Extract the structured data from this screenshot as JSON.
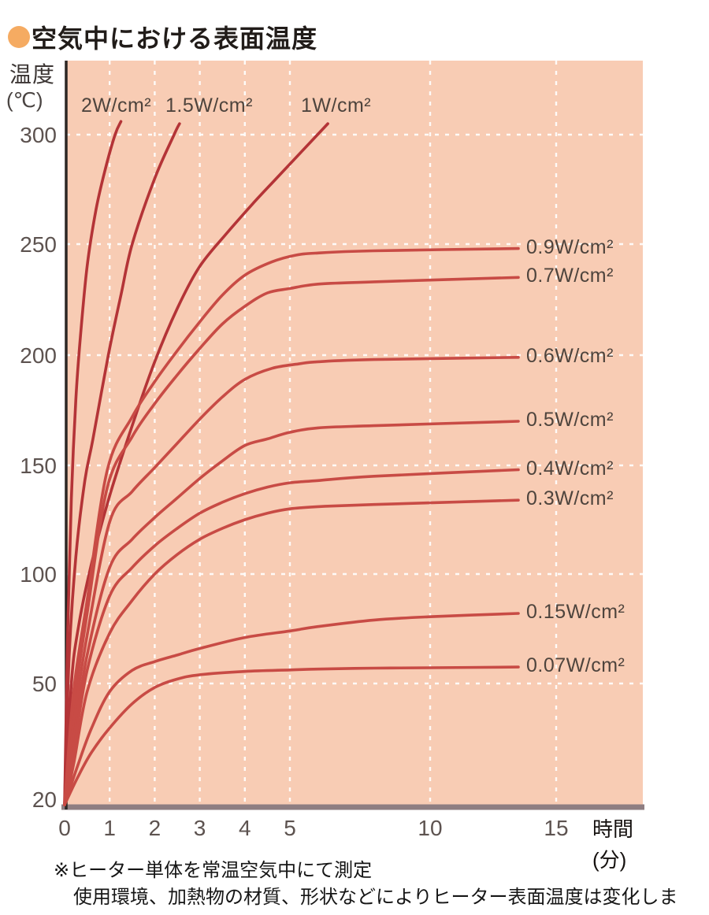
{
  "title": {
    "text": "空気中における表面温度"
  },
  "y_axis": {
    "title": "温度",
    "unit": "(℃)",
    "ticks": [
      300,
      250,
      200,
      150,
      100,
      50,
      20
    ]
  },
  "x_axis": {
    "ticks": [
      0,
      1,
      2,
      3,
      4,
      5,
      10,
      15
    ],
    "unit_line1": "時間",
    "unit_line2": "(分)"
  },
  "notes": [
    "※ヒーター単体を常温空気中にて測定",
    "使用環境、加熱物の材質、形状などによりヒーター表面温度は変化します。"
  ],
  "colors": {
    "plot_bg": "#f8ccb4",
    "grid": "#ffffff",
    "curve_steep": "#b43437",
    "curve_flat": "#c84b45",
    "y_axis_line": "#2c2724",
    "x_axis_line": "#8e7e82",
    "bullet": "#f5ab62",
    "tick_text": "#5d5350",
    "label_text": "#4e443d"
  },
  "chart_data": {
    "type": "line",
    "title": "空気中における表面温度",
    "xlabel": "時間(分)",
    "ylabel": "温度(℃)",
    "x_ticks": [
      0,
      1,
      2,
      3,
      4,
      5,
      10,
      15
    ],
    "y_ticks": [
      20,
      50,
      100,
      150,
      200,
      250,
      300
    ],
    "ylim": [
      20,
      310
    ],
    "xlim": [
      0,
      16
    ],
    "grid": "white dashed",
    "legend_position": "inline labels at curve ends",
    "x_scale_note": "0-5 min expanded, 5-15 min compressed (non-linear axis as drawn)",
    "series": [
      {
        "name": "2W/cm²",
        "label_pos": "top",
        "points": [
          [
            0,
            20
          ],
          [
            0.07,
            75
          ],
          [
            0.15,
            135
          ],
          [
            0.25,
            180
          ],
          [
            0.35,
            208
          ],
          [
            0.5,
            240
          ],
          [
            0.7,
            266
          ],
          [
            0.9,
            284
          ],
          [
            1.12,
            300
          ],
          [
            1.25,
            306
          ]
        ]
      },
      {
        "name": "1.5W/cm²",
        "label_pos": "top",
        "points": [
          [
            0,
            20
          ],
          [
            0.1,
            62
          ],
          [
            0.25,
            108
          ],
          [
            0.45,
            143
          ],
          [
            0.63,
            162
          ],
          [
            0.97,
            200
          ],
          [
            1.25,
            227
          ],
          [
            1.5,
            250
          ],
          [
            2,
            280
          ],
          [
            2.43,
            300
          ],
          [
            2.55,
            305
          ]
        ]
      },
      {
        "name": "1W/cm²",
        "label_pos": "top",
        "points": [
          [
            0,
            20
          ],
          [
            0.15,
            50
          ],
          [
            0.3,
            75
          ],
          [
            0.6,
            105
          ],
          [
            1,
            136
          ],
          [
            1.5,
            168
          ],
          [
            2,
            197
          ],
          [
            2.5,
            221
          ],
          [
            3,
            240
          ],
          [
            3.6,
            255
          ],
          [
            4.2,
            269
          ],
          [
            4.7,
            280
          ],
          [
            5.4,
            292
          ],
          [
            6.35,
            305
          ]
        ]
      },
      {
        "name": "0.9W/cm²",
        "label_pos": "right",
        "points": [
          [
            0,
            20
          ],
          [
            0.2,
            48
          ],
          [
            0.5,
            88
          ],
          [
            0.95,
            148
          ],
          [
            1.5,
            172
          ],
          [
            2,
            188
          ],
          [
            2.5,
            202
          ],
          [
            3,
            215
          ],
          [
            3.5,
            227
          ],
          [
            4,
            236
          ],
          [
            4.6,
            242
          ],
          [
            5.2,
            245
          ],
          [
            6,
            246
          ],
          [
            8,
            247
          ],
          [
            13.5,
            248
          ]
        ]
      },
      {
        "name": "0.7W/cm²",
        "label_pos": "right",
        "points": [
          [
            0,
            20
          ],
          [
            0.2,
            44
          ],
          [
            0.5,
            82
          ],
          [
            0.95,
            140
          ],
          [
            1.5,
            163
          ],
          [
            2,
            178
          ],
          [
            2.5,
            191
          ],
          [
            3,
            203
          ],
          [
            3.5,
            214
          ],
          [
            4,
            222
          ],
          [
            4.5,
            228
          ],
          [
            5,
            230
          ],
          [
            6,
            232
          ],
          [
            8,
            233
          ],
          [
            13.5,
            235
          ]
        ]
      },
      {
        "name": "0.6W/cm²",
        "label_pos": "right",
        "points": [
          [
            0,
            20
          ],
          [
            0.2,
            40
          ],
          [
            0.5,
            72
          ],
          [
            1,
            124
          ],
          [
            1.5,
            138
          ],
          [
            2,
            149
          ],
          [
            2.5,
            160
          ],
          [
            3,
            171
          ],
          [
            3.5,
            181
          ],
          [
            4,
            189
          ],
          [
            4.6,
            194
          ],
          [
            5.3,
            196
          ],
          [
            6,
            197
          ],
          [
            8,
            198
          ],
          [
            13.5,
            199
          ]
        ]
      },
      {
        "name": "0.5W/cm²",
        "label_pos": "right",
        "points": [
          [
            0,
            20
          ],
          [
            0.2,
            36
          ],
          [
            0.5,
            63
          ],
          [
            1,
            103
          ],
          [
            1.5,
            116
          ],
          [
            2,
            126
          ],
          [
            2.5,
            135
          ],
          [
            3,
            144
          ],
          [
            3.5,
            152
          ],
          [
            4,
            159
          ],
          [
            4.5,
            162
          ],
          [
            5,
            165
          ],
          [
            6,
            167
          ],
          [
            8,
            168
          ],
          [
            13.5,
            170
          ]
        ]
      },
      {
        "name": "0.4W/cm²",
        "label_pos": "right",
        "points": [
          [
            0,
            20
          ],
          [
            0.2,
            33
          ],
          [
            0.5,
            56
          ],
          [
            1,
            90
          ],
          [
            1.5,
            103
          ],
          [
            2,
            113
          ],
          [
            2.5,
            121
          ],
          [
            3,
            128
          ],
          [
            3.5,
            133
          ],
          [
            4,
            137
          ],
          [
            4.5,
            140
          ],
          [
            5,
            142
          ],
          [
            6,
            143
          ],
          [
            8,
            145
          ],
          [
            13.5,
            148
          ]
        ]
      },
      {
        "name": "0.3W/cm²",
        "label_pos": "right",
        "points": [
          [
            0,
            20
          ],
          [
            0.2,
            30
          ],
          [
            0.5,
            48
          ],
          [
            1,
            73
          ],
          [
            1.5,
            88
          ],
          [
            2,
            100
          ],
          [
            2.5,
            109
          ],
          [
            3,
            116
          ],
          [
            3.5,
            121
          ],
          [
            4,
            125
          ],
          [
            4.5,
            128
          ],
          [
            5,
            130
          ],
          [
            6,
            131
          ],
          [
            8,
            132
          ],
          [
            13.5,
            134
          ]
        ]
      },
      {
        "name": "0.15W/cm²",
        "label_pos": "right",
        "points": [
          [
            0,
            20
          ],
          [
            0.3,
            30
          ],
          [
            0.6,
            39
          ],
          [
            1,
            48
          ],
          [
            1.5,
            56
          ],
          [
            2,
            60
          ],
          [
            2.5,
            63
          ],
          [
            3,
            66
          ],
          [
            4,
            71
          ],
          [
            5,
            74
          ],
          [
            6,
            76
          ],
          [
            8,
            79
          ],
          [
            10,
            80.5
          ],
          [
            13.5,
            82
          ]
        ]
      },
      {
        "name": "0.07W/cm²",
        "label_pos": "right",
        "points": [
          [
            0,
            20
          ],
          [
            0.3,
            27
          ],
          [
            0.6,
            33
          ],
          [
            1,
            39
          ],
          [
            1.5,
            45
          ],
          [
            2,
            49
          ],
          [
            2.5,
            52
          ],
          [
            3,
            54
          ],
          [
            4,
            55.5
          ],
          [
            5,
            56.2
          ],
          [
            6,
            56.6
          ],
          [
            8,
            57
          ],
          [
            10,
            57.2
          ],
          [
            13.5,
            57.5
          ]
        ]
      }
    ]
  }
}
